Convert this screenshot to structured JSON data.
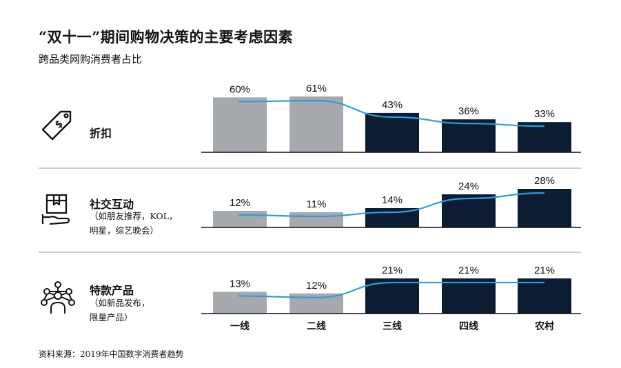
{
  "title": "“双十一”期间购物决策的主要考虑因素",
  "subtitle": "跨品类网购消费者占比",
  "source": "资料来源：2019年中国数字消费者趋势",
  "rows": [
    {
      "label": "折扣",
      "sub1": "",
      "sub2": "",
      "icon": "price-tag-icon"
    },
    {
      "label": "社交互动",
      "sub1": "（如朋友推荐，KOL，",
      "sub2": "明星，综艺晚会）",
      "icon": "box-hand-icon"
    },
    {
      "label": "特款产品",
      "sub1": "（如新品发布，",
      "sub2": "限量产品）",
      "icon": "network-person-icon"
    }
  ],
  "colors": {
    "light_bar": "#a6a9ae",
    "dark_bar": "#0c1c33",
    "trend_line": "#2b9fd9",
    "divider": "#9a9a9a"
  },
  "chart_data": {
    "type": "bar",
    "categories": [
      "一线",
      "二线",
      "三线",
      "四线",
      "农村"
    ],
    "panels": [
      {
        "name": "折扣",
        "values": [
          60,
          61,
          43,
          36,
          33
        ],
        "labels": [
          "60%",
          "61%",
          "43%",
          "36%",
          "33%"
        ]
      },
      {
        "name": "社交互动",
        "values": [
          12,
          11,
          14,
          24,
          28
        ],
        "labels": [
          "12%",
          "11%",
          "14%",
          "24%",
          "28%"
        ]
      },
      {
        "name": "特款产品",
        "values": [
          13,
          12,
          21,
          21,
          21
        ],
        "labels": [
          "13%",
          "12%",
          "21%",
          "21%",
          "21%"
        ]
      }
    ],
    "unit": "%",
    "bar_colors_by_category": [
      "light",
      "light",
      "dark",
      "dark",
      "dark"
    ],
    "trend_line": true,
    "gridlines": false
  }
}
